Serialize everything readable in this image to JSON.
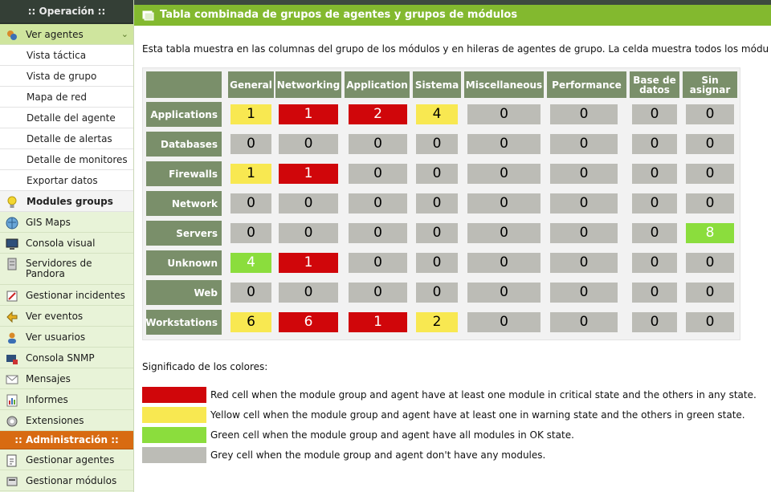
{
  "sidebar": {
    "operation_header": ":: Operación ::",
    "admin_header": ":: Administración ::",
    "ver_agentes": "Ver agentes",
    "subitems": [
      "Vista táctica",
      "Vista de grupo",
      "Mapa de red",
      "Detalle del agente",
      "Detalle de alertas",
      "Detalle de monitores",
      "Exportar datos",
      "Modules groups"
    ],
    "items": [
      {
        "label": "GIS Maps",
        "icon": "globe-icon"
      },
      {
        "label": "Consola visual",
        "icon": "monitor-icon"
      },
      {
        "label": "Servidores de Pandora",
        "icon": "server-icon"
      },
      {
        "label": "Gestionar incidentes",
        "icon": "incident-icon"
      },
      {
        "label": "Ver eventos",
        "icon": "events-icon"
      },
      {
        "label": "Ver usuarios",
        "icon": "users-icon"
      },
      {
        "label": "Consola SNMP",
        "icon": "snmp-icon"
      },
      {
        "label": "Mensajes",
        "icon": "envelope-icon"
      },
      {
        "label": "Informes",
        "icon": "report-icon"
      },
      {
        "label": "Extensiones",
        "icon": "extension-icon"
      }
    ],
    "admin_items": [
      {
        "label": "Gestionar agentes",
        "icon": "manage-agents-icon"
      },
      {
        "label": "Gestionar módulos",
        "icon": "manage-modules-icon"
      }
    ]
  },
  "header": {
    "title": "Tabla combinada de grupos de agentes y grupos de módulos"
  },
  "intro": "Esta tabla muestra en las columnas del grupo de los módulos y en hileras de agentes de grupo. La celda muestra todos los módulos",
  "matrix": {
    "columns": [
      "General",
      "Networking",
      "Application",
      "Sistema",
      "Miscellaneous",
      "Performance",
      "Base de datos",
      "Sin asignar"
    ],
    "rows": [
      {
        "name": "Applications",
        "values": [
          "1",
          "1",
          "2",
          "4",
          "0",
          "0",
          "0",
          "0"
        ],
        "colors": [
          "yellow",
          "red",
          "red",
          "yellow",
          "grey",
          "grey",
          "grey",
          "grey"
        ]
      },
      {
        "name": "Databases",
        "values": [
          "0",
          "0",
          "0",
          "0",
          "0",
          "0",
          "0",
          "0"
        ],
        "colors": [
          "grey",
          "grey",
          "grey",
          "grey",
          "grey",
          "grey",
          "grey",
          "grey"
        ]
      },
      {
        "name": "Firewalls",
        "values": [
          "1",
          "1",
          "0",
          "0",
          "0",
          "0",
          "0",
          "0"
        ],
        "colors": [
          "yellow",
          "red",
          "grey",
          "grey",
          "grey",
          "grey",
          "grey",
          "grey"
        ]
      },
      {
        "name": "Network",
        "values": [
          "0",
          "0",
          "0",
          "0",
          "0",
          "0",
          "0",
          "0"
        ],
        "colors": [
          "grey",
          "grey",
          "grey",
          "grey",
          "grey",
          "grey",
          "grey",
          "grey"
        ]
      },
      {
        "name": "Servers",
        "values": [
          "0",
          "0",
          "0",
          "0",
          "0",
          "0",
          "0",
          "8"
        ],
        "colors": [
          "grey",
          "grey",
          "grey",
          "grey",
          "grey",
          "grey",
          "grey",
          "green"
        ]
      },
      {
        "name": "Unknown",
        "values": [
          "4",
          "1",
          "0",
          "0",
          "0",
          "0",
          "0",
          "0"
        ],
        "colors": [
          "green",
          "red",
          "grey",
          "grey",
          "grey",
          "grey",
          "grey",
          "grey"
        ]
      },
      {
        "name": "Web",
        "values": [
          "0",
          "0",
          "0",
          "0",
          "0",
          "0",
          "0",
          "0"
        ],
        "colors": [
          "grey",
          "grey",
          "grey",
          "grey",
          "grey",
          "grey",
          "grey",
          "grey"
        ]
      },
      {
        "name": "Workstations",
        "values": [
          "6",
          "6",
          "1",
          "2",
          "0",
          "0",
          "0",
          "0"
        ],
        "colors": [
          "yellow",
          "red",
          "red",
          "yellow",
          "grey",
          "grey",
          "grey",
          "grey"
        ]
      }
    ]
  },
  "legend": {
    "title": "Significado de los colores:",
    "entries": [
      {
        "color": "#d0060a",
        "text": "Red cell when the module group and agent have at least one module in critical state and the others in any state."
      },
      {
        "color": "#f8e851",
        "text": "Yellow cell when the module group and agent have at least one in warning state and the others in green state."
      },
      {
        "color": "#8bdd3d",
        "text": "Green cell when the module group and agent have all modules in OK state."
      },
      {
        "color": "#bcbcb6",
        "text": "Grey cell when the module group and agent don't have any modules."
      }
    ]
  }
}
